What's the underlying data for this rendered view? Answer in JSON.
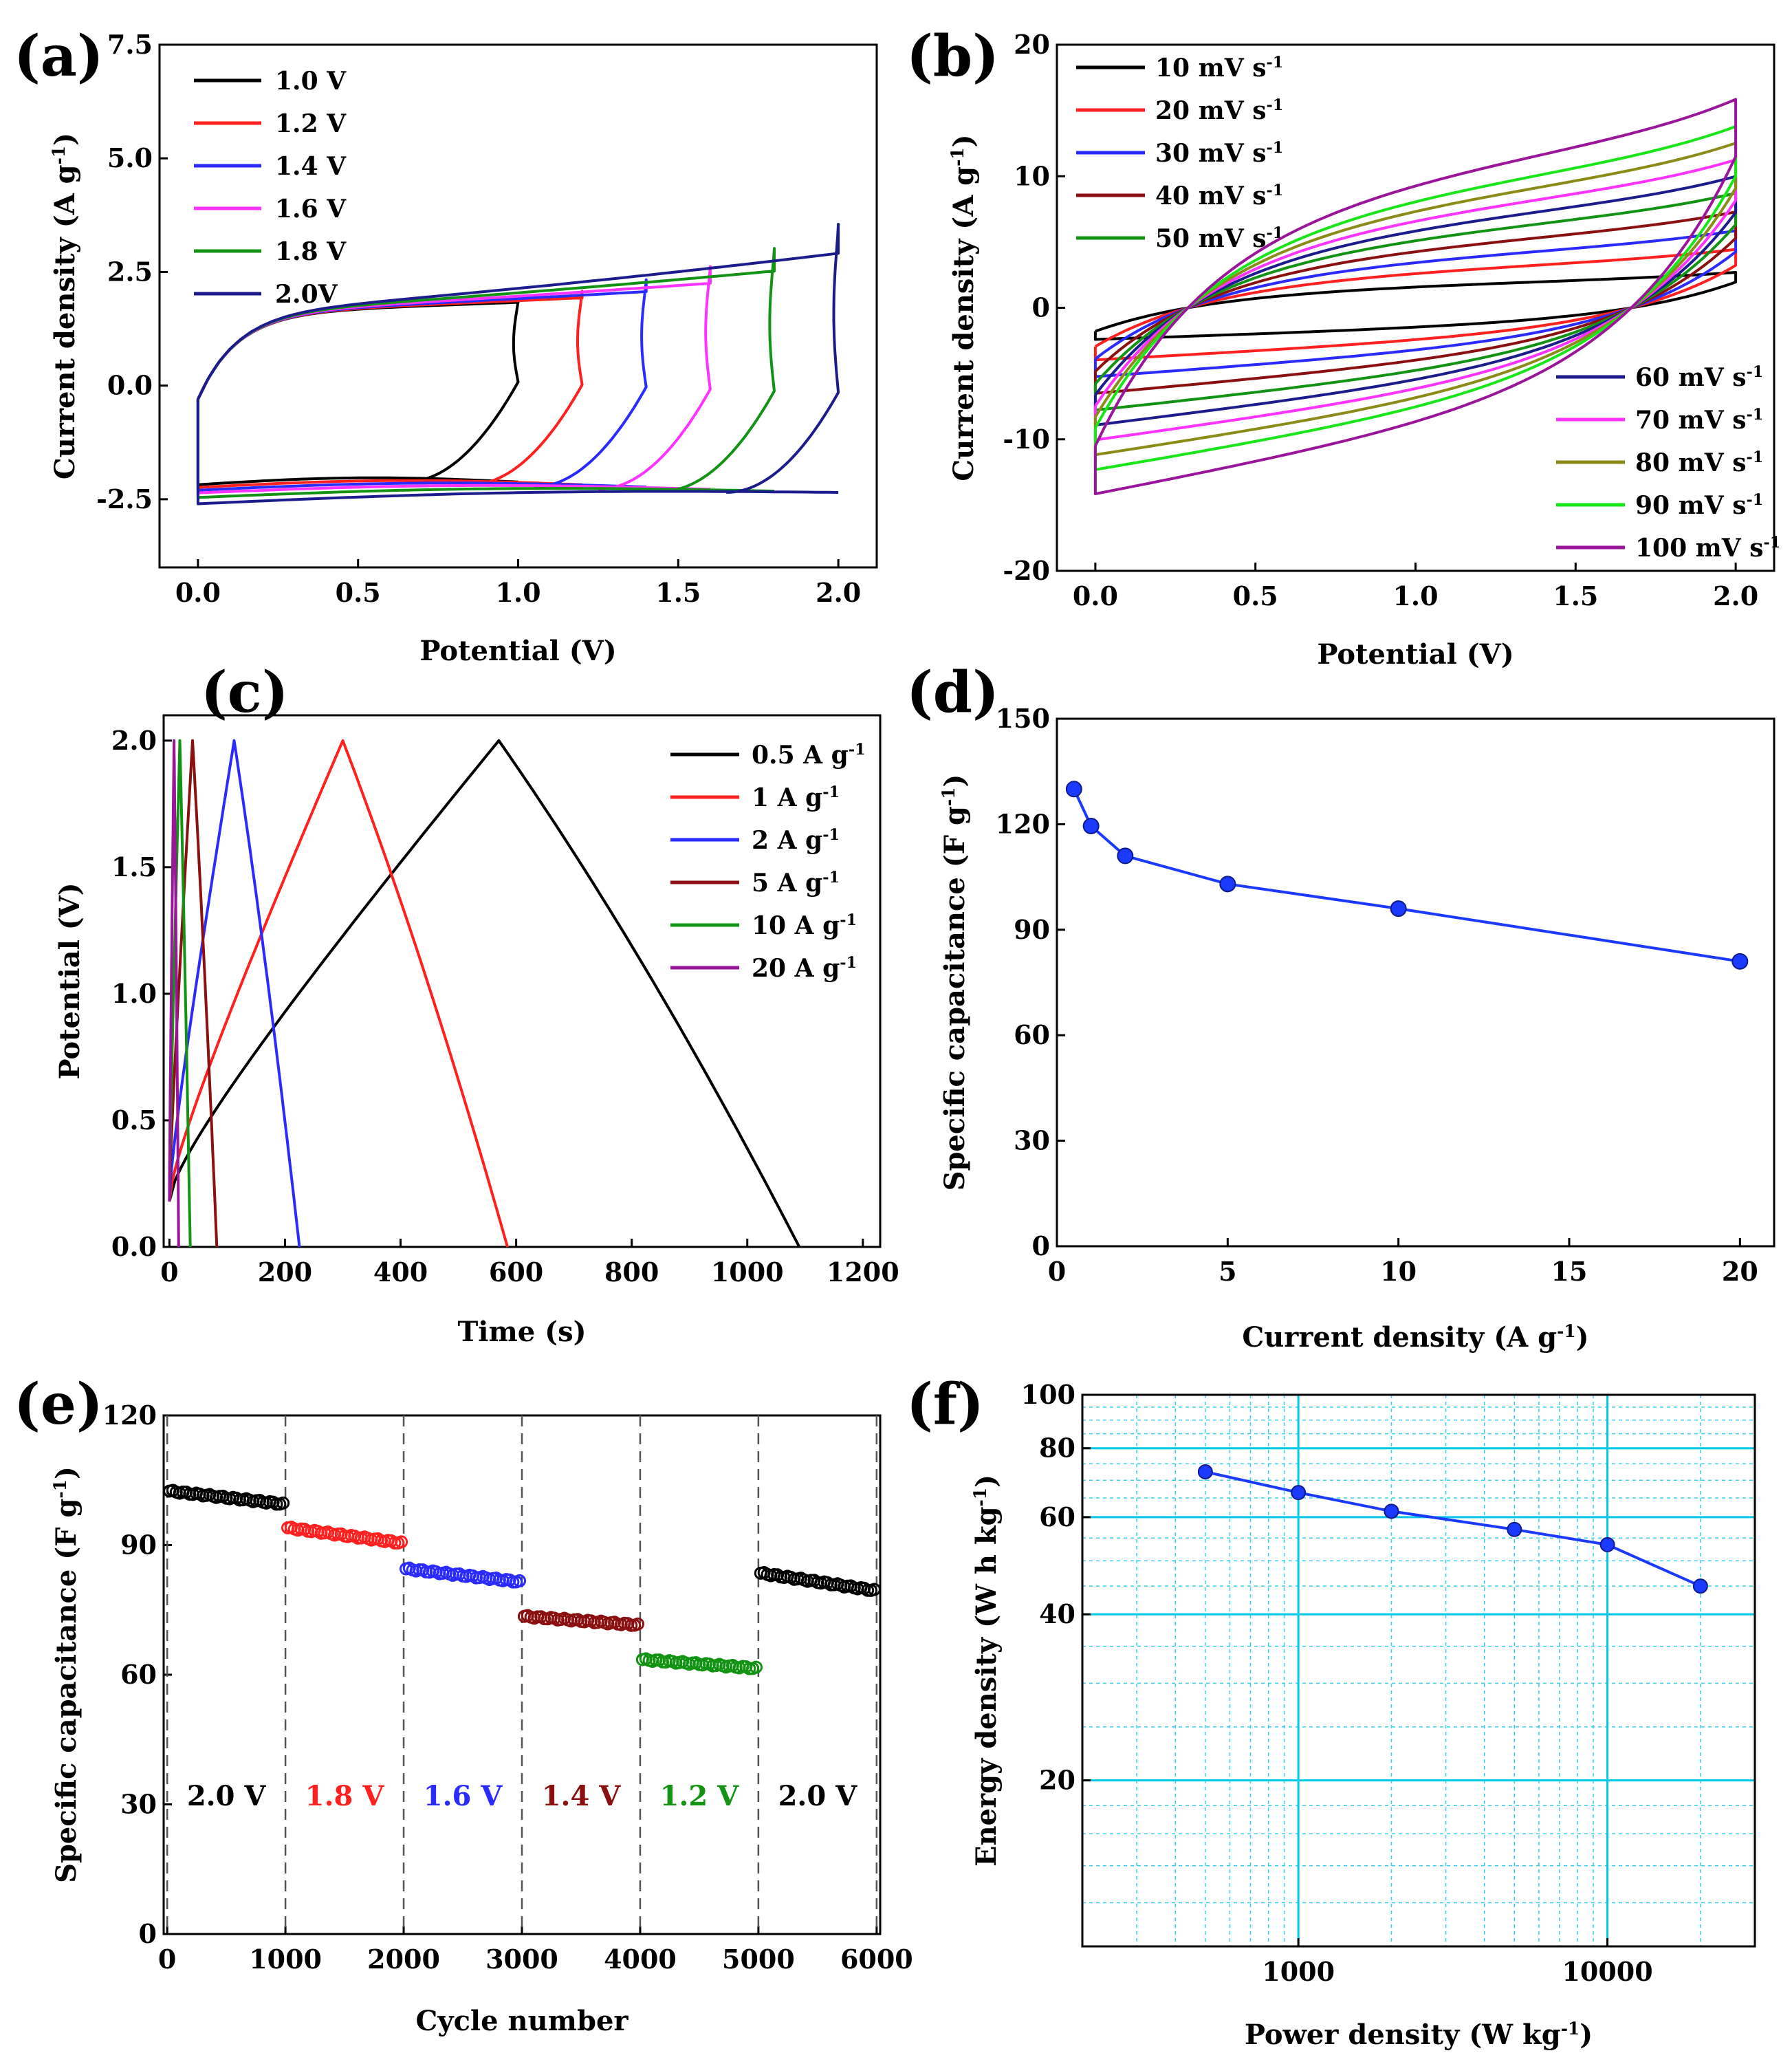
{
  "chart_data": [
    {
      "panel": "(a)",
      "type": "line",
      "title": "",
      "xlabel": "Potential (V)",
      "ylabel": "Current density (A g-1)",
      "xlim": [
        -0.12,
        2.12
      ],
      "ylim": [
        -4.0,
        7.5
      ],
      "xticks": [
        "0.0",
        "0.5",
        "1.0",
        "1.5",
        "2.0"
      ],
      "yticks": [
        "-2.5",
        "0.0",
        "2.5",
        "5.0",
        "7.5"
      ],
      "legend_position": "top-left",
      "series": [
        {
          "name": "1.0 V",
          "color": "#000000",
          "vmax": 1.0,
          "up_end": 1.88,
          "low_end": -2.12,
          "low_start": -2.18
        },
        {
          "name": "1.2 V",
          "color": "#ff2020",
          "vmax": 1.2,
          "up_end": 2.08,
          "low_end": -2.18,
          "low_start": -2.24
        },
        {
          "name": "1.4 V",
          "color": "#2b2bff",
          "vmax": 1.4,
          "up_end": 2.33,
          "low_end": -2.23,
          "low_start": -2.3
        },
        {
          "name": "1.6 V",
          "color": "#ff33ff",
          "vmax": 1.6,
          "up_end": 2.62,
          "low_end": -2.28,
          "low_start": -2.36
        },
        {
          "name": "1.8 V",
          "color": "#139313",
          "vmax": 1.8,
          "up_end": 3.02,
          "low_end": -2.32,
          "low_start": -2.46
        },
        {
          "name": "2.0V",
          "color": "#1c1c8c",
          "vmax": 2.0,
          "up_end": 3.55,
          "low_end": -2.35,
          "low_start": -2.6
        }
      ]
    },
    {
      "panel": "(b)",
      "type": "line",
      "title": "",
      "xlabel": "Potential (V)",
      "ylabel": "Current density (A g-1)",
      "xlim": [
        -0.12,
        2.12
      ],
      "ylim": [
        -20,
        20
      ],
      "xticks": [
        "0.0",
        "0.5",
        "1.0",
        "1.5",
        "2.0"
      ],
      "yticks": [
        "-20",
        "-10",
        "0",
        "10",
        "20"
      ],
      "legend_position": "top-left and bottom-right",
      "series": [
        {
          "name": "10 mV s-1",
          "color": "#000000",
          "scale": 0.17
        },
        {
          "name": "20 mV s-1",
          "color": "#ff2020",
          "scale": 0.28
        },
        {
          "name": "30 mV s-1",
          "color": "#2b2bff",
          "scale": 0.37
        },
        {
          "name": "40 mV s-1",
          "color": "#8b1010",
          "scale": 0.46
        },
        {
          "name": "50 mV s-1",
          "color": "#139313",
          "scale": 0.55
        },
        {
          "name": "60 mV s-1",
          "color": "#1c1c8c",
          "scale": 0.63
        },
        {
          "name": "70 mV s-1",
          "color": "#ff33ff",
          "scale": 0.71
        },
        {
          "name": "80 mV s-1",
          "color": "#8b8b18",
          "scale": 0.79
        },
        {
          "name": "90 mV s-1",
          "color": "#19e619",
          "scale": 0.87
        },
        {
          "name": "100 mV s-1",
          "color": "#9a159a",
          "scale": 1.0
        }
      ]
    },
    {
      "panel": "(c)",
      "type": "line",
      "title": "",
      "xlabel": "Time (s)",
      "ylabel": "Potential (V)",
      "xlim": [
        -10,
        1230
      ],
      "ylim": [
        0,
        2.1
      ],
      "xticks": [
        "0",
        "200",
        "400",
        "600",
        "800",
        "1000",
        "1200"
      ],
      "yticks": [
        "0.0",
        "0.5",
        "1.0",
        "1.5",
        "2.0"
      ],
      "legend_position": "top-right",
      "series": [
        {
          "name": "0.5 A g-1",
          "color": "#000000",
          "charge_end": 570,
          "discharge_end": 1090
        },
        {
          "name": "1 A g-1",
          "color": "#ff2020",
          "charge_end": 300,
          "discharge_end": 585
        },
        {
          "name": "2 A g-1",
          "color": "#2b2bff",
          "charge_end": 112,
          "discharge_end": 225
        },
        {
          "name": "5 A g-1",
          "color": "#8b1010",
          "charge_end": 40,
          "discharge_end": 82
        },
        {
          "name": "10 A g-1",
          "color": "#139313",
          "charge_end": 18,
          "discharge_end": 36
        },
        {
          "name": "20 A g-1",
          "color": "#9a159a",
          "charge_end": 8,
          "discharge_end": 16
        }
      ]
    },
    {
      "panel": "(d)",
      "type": "line",
      "title": "",
      "xlabel": "Current density (A g-1)",
      "ylabel": "Specific capacitance (F g-1)",
      "xlim": [
        0,
        21
      ],
      "ylim": [
        0,
        150
      ],
      "xticks": [
        "0",
        "5",
        "10",
        "15",
        "20"
      ],
      "yticks": [
        "0",
        "30",
        "60",
        "90",
        "120",
        "150"
      ],
      "color": "#1a3bff",
      "x": [
        0.5,
        1,
        2,
        5,
        10,
        20
      ],
      "y": [
        130,
        119.5,
        111,
        103,
        96,
        81
      ]
    },
    {
      "panel": "(e)",
      "type": "scatter",
      "title": "",
      "xlabel": "Cycle number",
      "ylabel": "Specific capacitance (F g-1)",
      "xlim": [
        -30,
        6030
      ],
      "ylim": [
        0,
        120
      ],
      "xticks": [
        "0",
        "1000",
        "2000",
        "3000",
        "4000",
        "5000",
        "6000"
      ],
      "yticks": [
        "0",
        "30",
        "60",
        "90",
        "120"
      ],
      "dividers": [
        0,
        1000,
        2000,
        3000,
        4000,
        5000,
        6000
      ],
      "segments": [
        {
          "label": "2.0 V",
          "color": "#000000",
          "x_start": 0,
          "x_end": 1000,
          "y_start": 102.5,
          "y_end": 99.5
        },
        {
          "label": "1.8 V",
          "color": "#ff2020",
          "x_start": 1000,
          "x_end": 2000,
          "y_start": 94,
          "y_end": 90.5
        },
        {
          "label": "1.6 V",
          "color": "#2b2bff",
          "x_start": 2000,
          "x_end": 3000,
          "y_start": 84.5,
          "y_end": 81.5
        },
        {
          "label": "1.4 V",
          "color": "#8b1010",
          "x_start": 3000,
          "x_end": 4000,
          "y_start": 73.5,
          "y_end": 71.5
        },
        {
          "label": "1.2 V",
          "color": "#139313",
          "x_start": 4000,
          "x_end": 5000,
          "y_start": 63.5,
          "y_end": 61.5
        },
        {
          "label": "2.0 V",
          "color": "#000000",
          "x_start": 5000,
          "x_end": 6000,
          "y_start": 83.5,
          "y_end": 79.5
        }
      ]
    },
    {
      "panel": "(f)",
      "type": "line",
      "title": "",
      "xlabel": "Power density (W kg-1)",
      "ylabel": "Energy density (W h kg-1)",
      "xscale": "log",
      "yscale": "log",
      "xlim": [
        200,
        30000
      ],
      "ylim": [
        10,
        100
      ],
      "xticks": [
        "1000",
        "10000"
      ],
      "yticks": [
        "20",
        "40",
        "60",
        "80",
        "100"
      ],
      "grid": true,
      "color": "#1a3bff",
      "x": [
        500,
        1000,
        2000,
        5000,
        10000,
        20000
      ],
      "y": [
        72.5,
        66.5,
        61.5,
        57,
        53.5,
        45
      ]
    }
  ]
}
